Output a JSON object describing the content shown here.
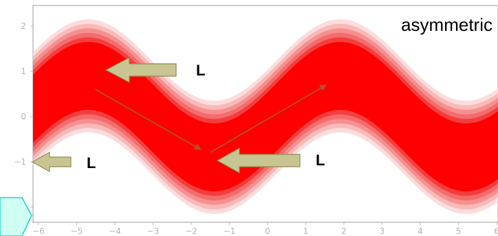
{
  "chart_data": {
    "type": "area",
    "title": "",
    "xlabel": "",
    "ylabel": "",
    "xlim": [
      -6,
      6
    ],
    "ylim": [
      -2.5,
      2.5
    ],
    "x_ticks": [
      "−6",
      "−5",
      "−4",
      "−3",
      "−2",
      "−1",
      "0",
      "1",
      "2",
      "3",
      "4",
      "5",
      "6"
    ],
    "y_ticks": [
      "2",
      "1",
      "0",
      "−1",
      "−2"
    ],
    "grid": false,
    "band": {
      "description_values": {
        "center_amplitude": 0.9,
        "center_period": 6.6,
        "center_phase_peak_x": -4.7,
        "half_widths": [
          1.25,
          1.15,
          1.05,
          0.95,
          0.85,
          0.75
        ]
      },
      "colors": [
        "#fcdcdc",
        "#f9b9b9",
        "#f69090",
        "#f46c6c",
        "#f23e3e",
        "#ff0000"
      ]
    },
    "annotations": {
      "title": "asymmetric",
      "arrow_labels": [
        "L",
        "L",
        "L"
      ]
    },
    "arrow_color": "#c9c592",
    "arrow_stroke": "#8f8b4f",
    "trend_line_color": "#b2532a"
  }
}
